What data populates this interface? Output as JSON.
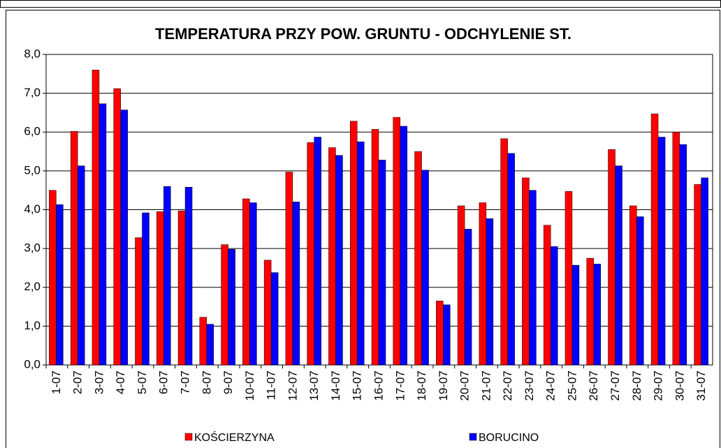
{
  "chart_data": {
    "type": "bar",
    "title": "TEMPERATURA PRZY POW. GRUNTU - ODCHYLENIE ST.",
    "categories": [
      "1-07",
      "2-07",
      "3-07",
      "4-07",
      "5-07",
      "6-07",
      "7-07",
      "8-07",
      "9-07",
      "10-07",
      "11-07",
      "12-07",
      "13-07",
      "14-07",
      "15-07",
      "16-07",
      "17-07",
      "18-07",
      "19-07",
      "20-07",
      "21-07",
      "22-07",
      "23-07",
      "24-07",
      "25-07",
      "26-07",
      "27-07",
      "28-07",
      "29-07",
      "30-07",
      "31-07"
    ],
    "series": [
      {
        "name": "KOŚCIERZYNA",
        "color": "#ff0000",
        "values": [
          4.5,
          6.02,
          7.6,
          7.12,
          3.28,
          3.95,
          3.97,
          1.23,
          3.1,
          4.28,
          2.7,
          4.97,
          5.73,
          5.6,
          6.28,
          6.07,
          6.38,
          5.5,
          1.65,
          4.1,
          4.18,
          5.83,
          4.82,
          3.6,
          4.47,
          2.75,
          5.55,
          4.1,
          6.47,
          6.0,
          4.65
        ]
      },
      {
        "name": "BORUCINO",
        "color": "#0000ff",
        "values": [
          4.13,
          5.13,
          6.73,
          6.57,
          3.92,
          4.6,
          4.58,
          1.05,
          2.98,
          4.18,
          2.38,
          4.2,
          5.87,
          5.4,
          5.75,
          5.28,
          6.15,
          5.02,
          1.55,
          3.5,
          3.77,
          5.45,
          4.5,
          3.05,
          2.57,
          2.6,
          5.13,
          3.82,
          5.87,
          5.68,
          4.82
        ]
      }
    ],
    "ylim": [
      0,
      8
    ],
    "yticks": [
      {
        "value": 0,
        "label": "0,0"
      },
      {
        "value": 1,
        "label": "1,0"
      },
      {
        "value": 2,
        "label": "2,0"
      },
      {
        "value": 3,
        "label": "3,0"
      },
      {
        "value": 4,
        "label": "4,0"
      },
      {
        "value": 5,
        "label": "5,0"
      },
      {
        "value": 6,
        "label": "6,0"
      },
      {
        "value": 7,
        "label": "7,0"
      },
      {
        "value": 8,
        "label": "8,0"
      }
    ],
    "grid": true,
    "legend": "bottom"
  }
}
